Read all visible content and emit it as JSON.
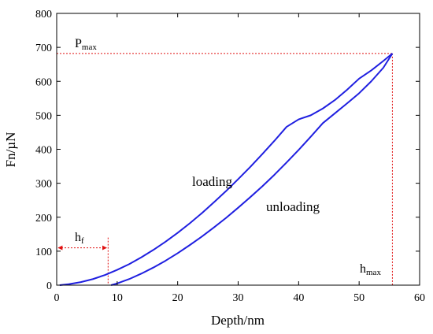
{
  "chart_data": {
    "type": "line",
    "xlabel": "Depth/nm",
    "ylabel": "Fn/µN",
    "xlim": [
      0,
      60
    ],
    "ylim": [
      0,
      800
    ],
    "xticks": [
      0,
      10,
      20,
      30,
      40,
      50,
      60
    ],
    "yticks": [
      0,
      100,
      200,
      300,
      400,
      500,
      600,
      700,
      800
    ],
    "grid": false,
    "series": [
      {
        "name": "loading",
        "color": "#1f1fe0",
        "x": [
          0.5,
          2,
          4,
          6,
          8,
          10,
          12,
          14,
          16,
          18,
          20,
          22,
          24,
          26,
          28,
          30,
          32,
          34,
          36,
          38,
          40,
          42,
          44,
          46,
          48,
          50,
          52,
          54,
          55.5
        ],
        "y": [
          0,
          3,
          9,
          18,
          30,
          45,
          62,
          82,
          104,
          128,
          154,
          182,
          212,
          244,
          277,
          312,
          348,
          386,
          425,
          466,
          488,
          500,
          520,
          545,
          575,
          608,
          632,
          660,
          682
        ]
      },
      {
        "name": "unloading",
        "color": "#1f1fe0",
        "x": [
          9,
          10,
          12,
          14,
          16,
          18,
          20,
          22,
          24,
          26,
          28,
          30,
          32,
          34,
          36,
          38,
          40,
          42,
          44,
          46,
          48,
          50,
          52,
          54,
          55.5
        ],
        "y": [
          0,
          5,
          18,
          34,
          52,
          72,
          94,
          118,
          143,
          170,
          198,
          228,
          259,
          291,
          325,
          361,
          398,
          437,
          477,
          506,
          535,
          565,
          600,
          640,
          682
        ]
      }
    ],
    "annotations": {
      "loading_label": "loading",
      "unloading_label": "unloading",
      "pmax_label": "P",
      "pmax_sub": "max",
      "hmax_label": "h",
      "hmax_sub": "max",
      "hf_label": "h",
      "hf_sub": "f",
      "pmax_value": 682,
      "hmax_value": 55.5,
      "hf_value": 8.5,
      "hf_arrow_y": 110
    },
    "colors": {
      "curve": "#1f1fe0",
      "guide": "#e01010",
      "axis": "#000000"
    }
  }
}
